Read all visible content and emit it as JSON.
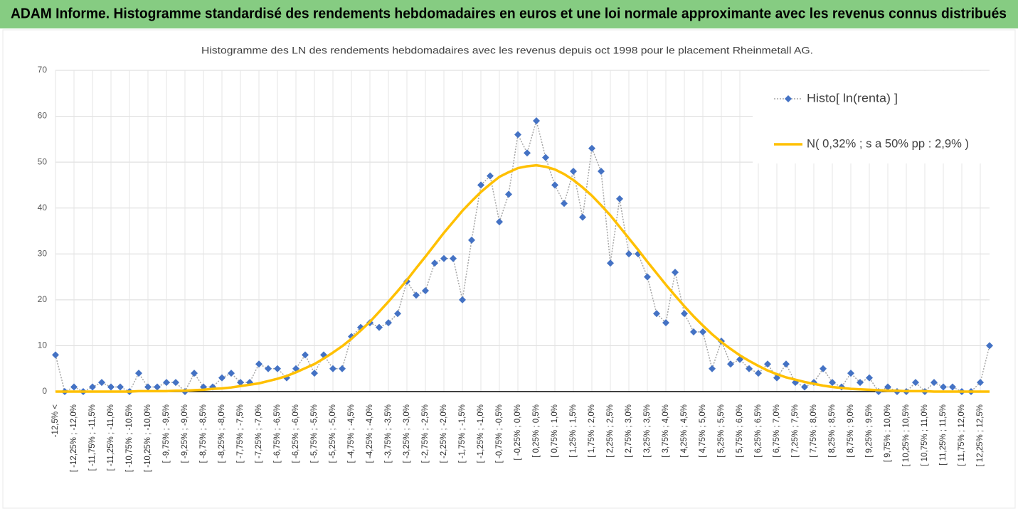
{
  "header": {
    "title": "ADAM Informe. Histogramme standardisé des rendements hebdomadaires en euros et une loi normale approximante avec les revenus connus distribués"
  },
  "chart_data": {
    "type": "line",
    "title": "Histogramme  des LN des rendements hebdomadaires avec les revenus depuis oct 1998 pour le placement Rheinmetall  AG.",
    "categories": [
      "-12,5% <",
      null,
      "[ -12,25% ; -12,0%",
      null,
      "[ -11,75% ; -11,5%",
      null,
      "[ -11,25% ; -11,0%",
      null,
      "[ -10,75% ; -10,5%",
      null,
      "[ -10,25% ; -10,0%",
      null,
      "[ -9,75% ; -9,5%",
      null,
      "[ -9,25% ; -9,0%",
      null,
      "[ -8,75% ; -8,5%",
      null,
      "[ -8,25% ; -8,0%",
      null,
      "[ -7,75% ; -7,5%",
      null,
      "[ -7,25% ; -7,0%",
      null,
      "[ -6,75% ; -6,5%",
      null,
      "[ -6,25% ; -6,0%",
      null,
      "[ -5,75% ; -5,5%",
      null,
      "[ -5,25% ; -5,0%",
      null,
      "[ -4,75% ; -4,5%",
      null,
      "[ -4,25% ; -4,0%",
      null,
      "[ -3,75% ; -3,5%",
      null,
      "[ -3,25% ; -3,0%",
      null,
      "[ -2,75% ; -2,5%",
      null,
      "[ -2,25% ; -2,0%",
      null,
      "[ -1,75% ; -1,5%",
      null,
      "[ -1,25% ; -1,0%",
      null,
      "[ -0,75% ; -0,5%",
      null,
      "[ -0,25% ; 0,0%",
      null,
      "[ 0,25% ; 0,5%",
      null,
      "[ 0,75% ; 1,0%",
      null,
      "[ 1,25% ; 1,5%",
      null,
      "[ 1,75% ; 2,0%",
      null,
      "[ 2,25% ; 2,5%",
      null,
      "[ 2,75% ; 3,0%",
      null,
      "[ 3,25% ; 3,5%",
      null,
      "[ 3,75% ; 4,0%",
      null,
      "[ 4,25% ; 4,5%",
      null,
      "[ 4,75% ; 5,0%",
      null,
      "[ 5,25% ; 5,5%",
      null,
      "[ 5,75% ; 6,0%",
      null,
      "[ 6,25% ; 6,5%",
      null,
      "[ 6,75% ; 7,0%",
      null,
      "[ 7,25% ; 7,5%",
      null,
      "[ 7,75% ; 8,0%",
      null,
      "[ 8,25% ; 8,5%",
      null,
      "[ 8,75% ; 9,0%",
      null,
      "[ 9,25% ; 9,5%",
      null,
      "[ 9,75% ; 10,0%",
      null,
      "[ 10,25% ; 10,5%",
      null,
      "[ 10,75% ; 11,0%",
      null,
      "[ 11,25% ; 11,5%",
      null,
      "[ 11,75% ; 12,0%",
      null,
      "[ 12,25% ; 12,5%",
      null
    ],
    "series": [
      {
        "name": "Histo[ ln(renta) ]",
        "color": "#4472c4",
        "line_color": "#a6a6a6",
        "marker": "diamond",
        "values": [
          8,
          0,
          1,
          0,
          1,
          2,
          1,
          1,
          0,
          4,
          1,
          1,
          2,
          2,
          0,
          4,
          1,
          1,
          3,
          4,
          2,
          2,
          6,
          5,
          5,
          3,
          5,
          8,
          4,
          8,
          5,
          5,
          12,
          14,
          15,
          14,
          15,
          17,
          24,
          21,
          22,
          28,
          29,
          29,
          20,
          33,
          45,
          47,
          37,
          43,
          56,
          52,
          59,
          51,
          45,
          41,
          48,
          38,
          53,
          48,
          28,
          42,
          30,
          30,
          25,
          17,
          15,
          26,
          17,
          13,
          13,
          5,
          11,
          6,
          7,
          5,
          4,
          6,
          3,
          6,
          2,
          1,
          2,
          5,
          2,
          1,
          4,
          2,
          3,
          0,
          1,
          0,
          0,
          2,
          0,
          2,
          1,
          1,
          0,
          0,
          2,
          10
        ]
      },
      {
        "name": "N( 0,32% ; s a 50% pp : 2,9% )",
        "color": "#ffc000",
        "marker": null,
        "values": [
          0,
          0,
          0,
          0,
          0,
          0,
          0,
          0,
          0.0,
          0.1,
          0.1,
          0.1,
          0.1,
          0.2,
          0.2,
          0.3,
          0.4,
          0.6,
          0.7,
          0.9,
          1.2,
          1.5,
          1.8,
          2.3,
          2.8,
          3.4,
          4.2,
          5.1,
          6.0,
          7.2,
          8.5,
          9.9,
          11.5,
          13.3,
          15.2,
          17.4,
          19.6,
          21.9,
          24.3,
          26.9,
          29.4,
          32.0,
          34.6,
          37.0,
          39.4,
          41.5,
          43.5,
          45.2,
          46.8,
          47.8,
          48.7,
          49.1,
          49.3,
          49.0,
          48.4,
          47.4,
          46.1,
          44.5,
          42.7,
          40.6,
          38.4,
          35.9,
          33.4,
          30.9,
          28.3,
          25.8,
          23.3,
          20.9,
          18.6,
          16.4,
          14.4,
          12.5,
          10.8,
          9.3,
          7.9,
          6.7,
          5.6,
          4.6,
          3.8,
          3.1,
          2.6,
          2.1,
          1.7,
          1.3,
          1.0,
          0.8,
          0.6,
          0.5,
          0.4,
          0.3,
          0.2,
          0.2,
          0.1,
          0.1,
          0.1,
          0,
          0,
          0,
          0,
          0,
          0,
          0
        ]
      }
    ],
    "ylim": [
      0,
      70
    ],
    "yticks": [
      0,
      10,
      20,
      30,
      40,
      50,
      60,
      70
    ],
    "grid": true,
    "legend": "top-right"
  }
}
